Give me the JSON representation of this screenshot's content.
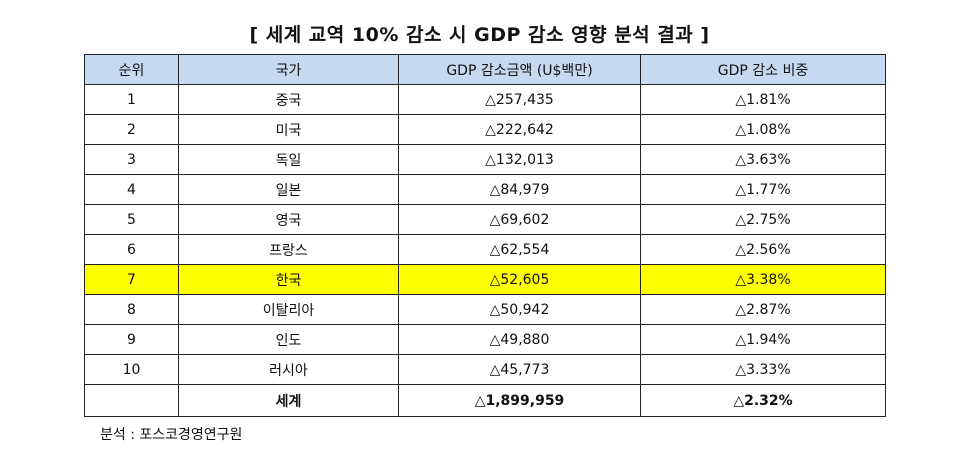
{
  "title": "[ 세계 교역 10% 감소 시 GDP 감소 영향 분석 결과 ]",
  "table": {
    "headers": [
      "순위",
      "국가",
      "GDP 감소금액 (U$백만)",
      "GDP 감소 비중"
    ],
    "rows": [
      [
        "1",
        "중국",
        "△257,435",
        "△1.81%"
      ],
      [
        "2",
        "미국",
        "△222,642",
        "△1.08%"
      ],
      [
        "3",
        "독일",
        "△132,013",
        "△3.63%"
      ],
      [
        "4",
        "일본",
        "△84,979",
        "△1.77%"
      ],
      [
        "5",
        "영국",
        "△69,602",
        "△2.75%"
      ],
      [
        "6",
        "프랑스",
        "△62,554",
        "△2.56%"
      ],
      [
        "7",
        "한국",
        "△52,605",
        "△3.38%"
      ],
      [
        "8",
        "이탈리아",
        "△50,942",
        "△2.87%"
      ],
      [
        "9",
        "인도",
        "△49,880",
        "△1.94%"
      ],
      [
        "10",
        "러시아",
        "△45,773",
        "△3.33%"
      ]
    ],
    "total": [
      "",
      "세계",
      "△1,899,959",
      "△2.32%"
    ],
    "highlight_color": "#ffff00",
    "header_color": "#c5d9f1"
  },
  "source": "분석 : 포스코경영연구원"
}
